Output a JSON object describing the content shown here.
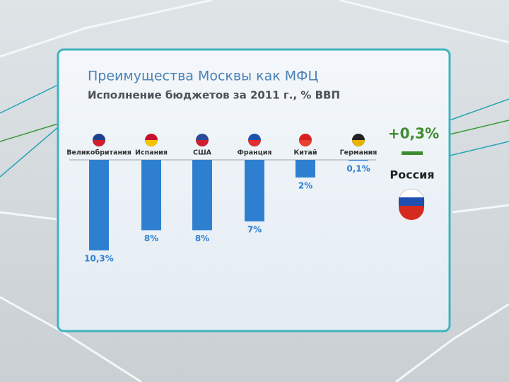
{
  "chart_data": {
    "type": "bar",
    "title": "Преимущества Москвы как МФЦ",
    "subtitle": "Исполнение бюджетов за 2011 г., % ВВП",
    "categories": [
      "Великобритания",
      "Испания",
      "США",
      "Франция",
      "Китай",
      "Германия"
    ],
    "values": [
      10.3,
      8,
      8,
      7,
      2,
      0.1
    ],
    "value_labels": [
      "10,3%",
      "8%",
      "8%",
      "7%",
      "2%",
      "0,1%"
    ],
    "color": "#2f7fd0",
    "direction": "down",
    "highlight": {
      "label": "Россия",
      "value": 0.3,
      "value_label": "+0,3%",
      "color": "#3d8c2f"
    }
  }
}
